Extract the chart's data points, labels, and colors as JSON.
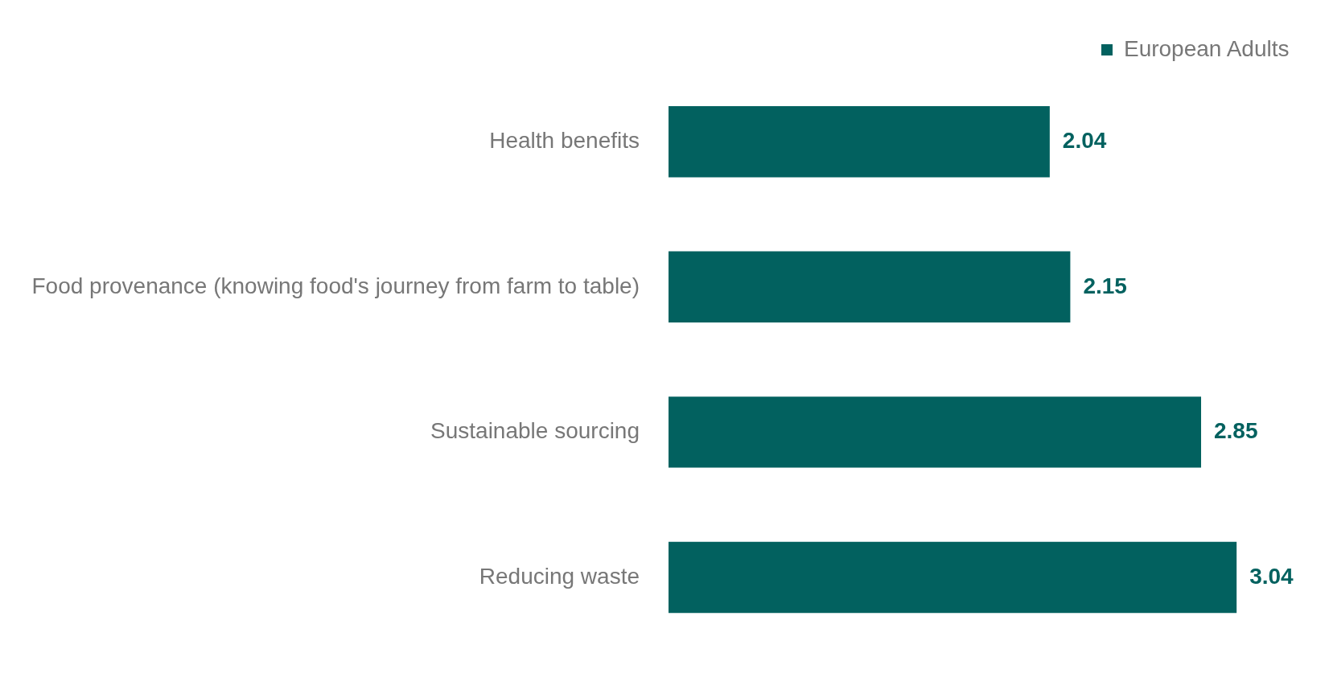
{
  "chart_data": {
    "type": "bar",
    "orientation": "horizontal",
    "categories": [
      "Health benefits",
      "Food provenance (knowing food's journey from farm to table)",
      "Sustainable sourcing",
      "Reducing waste"
    ],
    "series": [
      {
        "name": "European Adults",
        "color": "#02615f",
        "values": [
          2.04,
          2.15,
          2.85,
          3.04
        ]
      }
    ],
    "tick_labels": "y",
    "data_labels": true,
    "legend": "top right",
    "grid": false
  }
}
